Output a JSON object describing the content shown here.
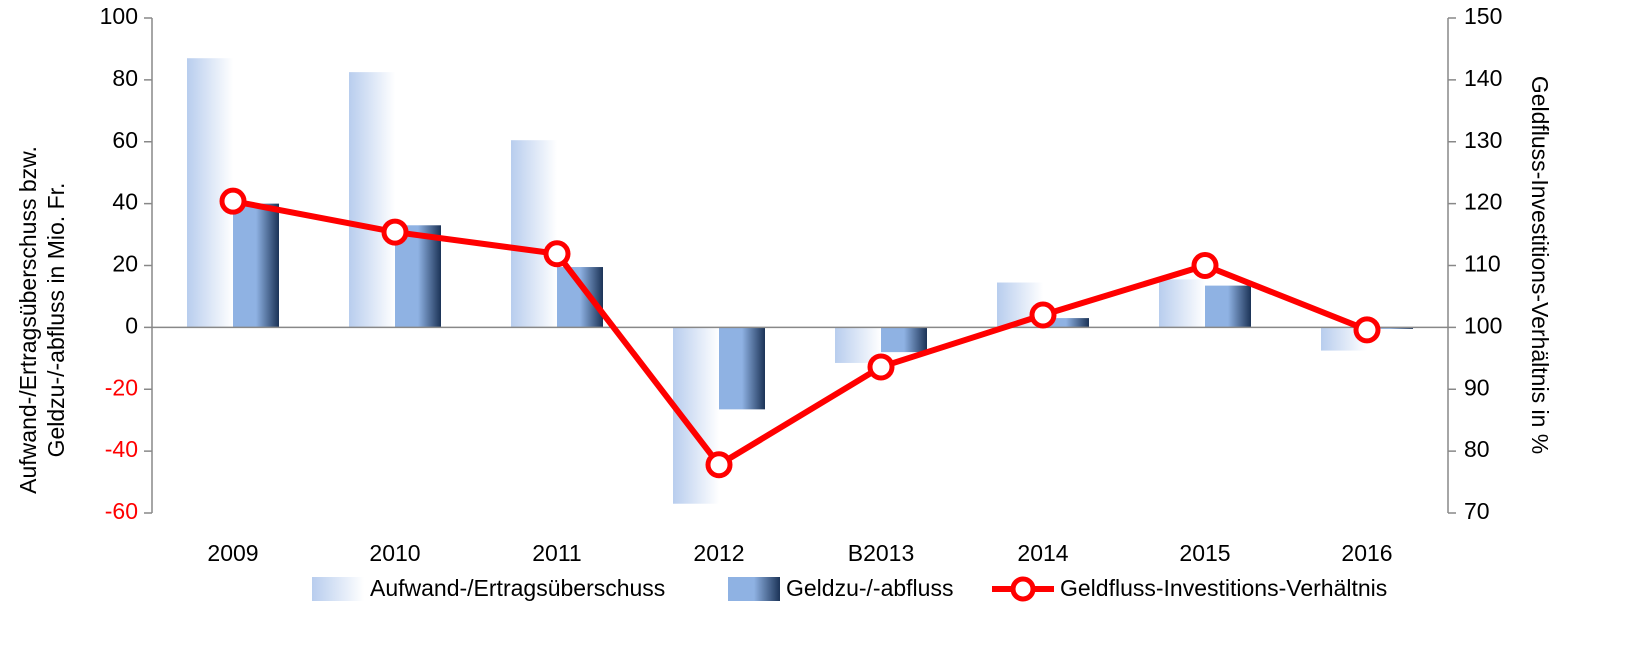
{
  "chart_data": {
    "type": "bar",
    "categories": [
      "2009",
      "2010",
      "2011",
      "2012",
      "B2013",
      "2014",
      "2015",
      "2016"
    ],
    "series": [
      {
        "name": "Aufwand-/Ertragsüberschuss",
        "color": "#b8cdee",
        "values": [
          87,
          82.5,
          60.5,
          -57,
          -11.5,
          14.5,
          15.5,
          -7.5
        ]
      },
      {
        "name": "Geldzu-/-abfluss",
        "color": "#8fb2e3",
        "values": [
          40,
          33,
          19.5,
          -26.5,
          -8,
          3,
          13.5,
          -0.5
        ]
      },
      {
        "name": "Geldfluss-Investitions-Verhältnis",
        "type": "line",
        "axis": "y2",
        "color": "#ff0000",
        "values": [
          120.4,
          115.4,
          111.9,
          77.8,
          93.6,
          102,
          110,
          99.6
        ]
      }
    ],
    "y_label": [
      "Aufwand-/Ertragsüberschuss bzw.",
      "Geldzu-/-abfluss in Mio. Fr."
    ],
    "y2_label": "Geldfluss-Investitions-Verhältnis in %",
    "ylim": [
      -60,
      100
    ],
    "yticks": [
      -60,
      -40,
      -20,
      0,
      20,
      40,
      60,
      80,
      100
    ],
    "y2lim": [
      70,
      150
    ],
    "y2ticks": [
      70,
      80,
      90,
      100,
      110,
      120,
      130,
      140,
      150
    ],
    "negative_tick_color": "#ff0000",
    "legend": "bottom"
  }
}
